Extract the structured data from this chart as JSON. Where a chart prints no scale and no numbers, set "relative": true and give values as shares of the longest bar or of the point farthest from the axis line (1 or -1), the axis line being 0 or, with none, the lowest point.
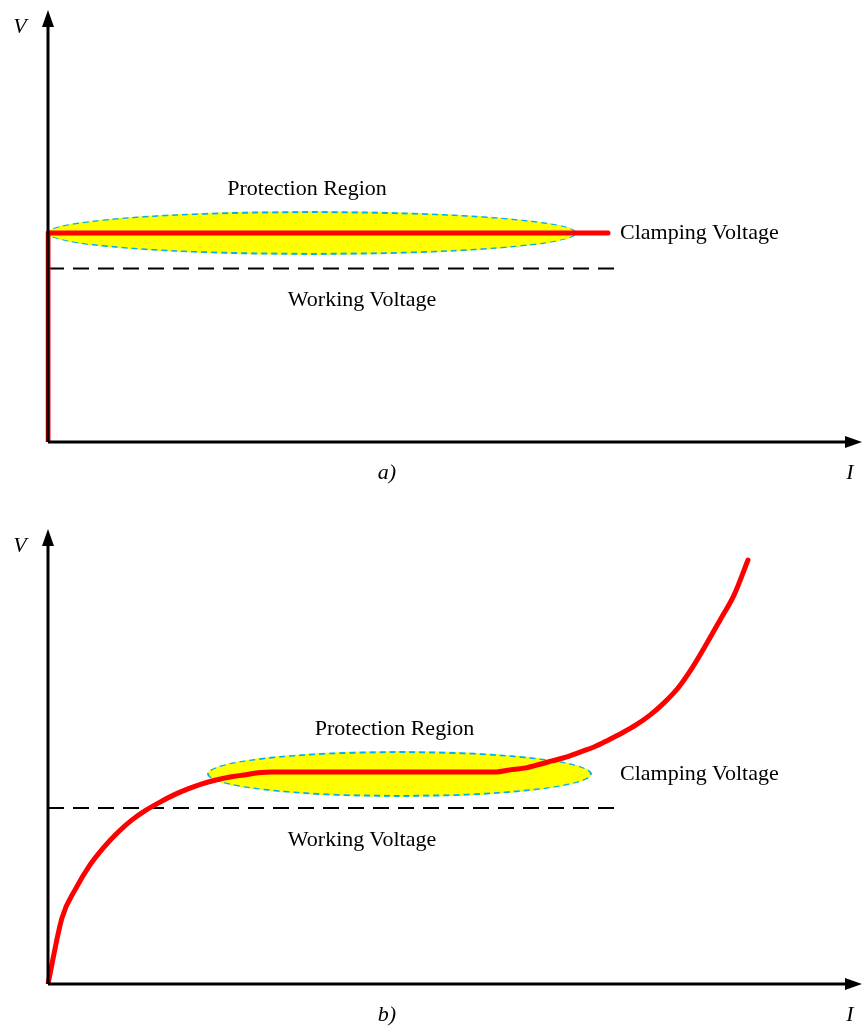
{
  "chart_data": [
    {
      "type": "step",
      "title": "a)",
      "xlabel": "I",
      "ylabel": "V",
      "relative": true,
      "categories": [
        null,
        null,
        null,
        null,
        null,
        null,
        null,
        null,
        null,
        null,
        null,
        null,
        null,
        null,
        null,
        null,
        null,
        null,
        null,
        null,
        null,
        null,
        null,
        null,
        null,
        null,
        null,
        null,
        null,
        null,
        null,
        null,
        null,
        null,
        null,
        null,
        null,
        null,
        null,
        null,
        null,
        null,
        null,
        null,
        null,
        null,
        null,
        null,
        null,
        null,
        null,
        null,
        null,
        null,
        null,
        null,
        null,
        null,
        null
      ],
      "series": [
        {
          "color": "#ff0000",
          "values": [
            0,
            1,
            1,
            1,
            1,
            1,
            1,
            1,
            1,
            1,
            1,
            1,
            1,
            1,
            1,
            1,
            1,
            1,
            1,
            1,
            1,
            1,
            1,
            1,
            1,
            1,
            1,
            1,
            1,
            1,
            1,
            1,
            1,
            1,
            1,
            1,
            1,
            1,
            1,
            1,
            1,
            null,
            null,
            null,
            null,
            null,
            null,
            null,
            null,
            null,
            null,
            null,
            null,
            null,
            null,
            null,
            null,
            null,
            null
          ]
        }
      ],
      "ref_lines": [
        {
          "axis": "y",
          "value": 0.83,
          "label": "Working Voltage",
          "color": "#000000",
          "line_style": "dashed"
        }
      ],
      "annotations": [
        "Protection Region",
        "Clamping Voltage"
      ]
    },
    {
      "type": "line",
      "title": "b)",
      "xlabel": "I",
      "ylabel": "V",
      "relative": true,
      "categories": [
        null,
        null,
        null,
        null,
        null,
        null,
        null,
        null,
        null,
        null,
        null,
        null,
        null,
        null,
        null,
        null,
        null,
        null,
        null,
        null,
        null,
        null,
        null,
        null,
        null,
        null,
        null,
        null,
        null,
        null,
        null,
        null,
        null,
        null,
        null,
        null,
        null,
        null,
        null,
        null,
        null,
        null,
        null,
        null,
        null,
        null,
        null,
        null,
        null,
        null,
        null,
        null,
        null,
        null,
        null,
        null,
        null,
        null,
        null
      ],
      "series": [
        {
          "color": "#ff0000",
          "values": [
            0,
            0.156,
            0.226,
            0.281,
            0.323,
            0.358,
            0.387,
            0.41,
            0.429,
            0.446,
            0.46,
            0.472,
            0.481,
            0.488,
            0.493,
            0.498,
            0.5,
            0.5,
            0.5,
            0.5,
            0.5,
            0.5,
            0.5,
            0.5,
            0.5,
            0.5,
            0.5,
            0.5,
            0.5,
            0.5,
            0.5,
            0.5,
            0.5,
            0.505,
            0.509,
            0.517,
            0.526,
            0.535,
            0.547,
            0.559,
            0.575,
            0.592,
            0.611,
            0.634,
            0.663,
            0.698,
            0.745,
            0.8,
            0.858,
            0.917,
            1,
            null,
            null,
            null,
            null,
            null,
            null,
            null,
            null
          ]
        }
      ],
      "ref_lines": [
        {
          "axis": "y",
          "value": 0.415,
          "label": "Working Voltage",
          "color": "#000000",
          "line_style": "dashed"
        }
      ],
      "annotations": [
        "Protection Region",
        "Clamping Voltage"
      ]
    }
  ]
}
